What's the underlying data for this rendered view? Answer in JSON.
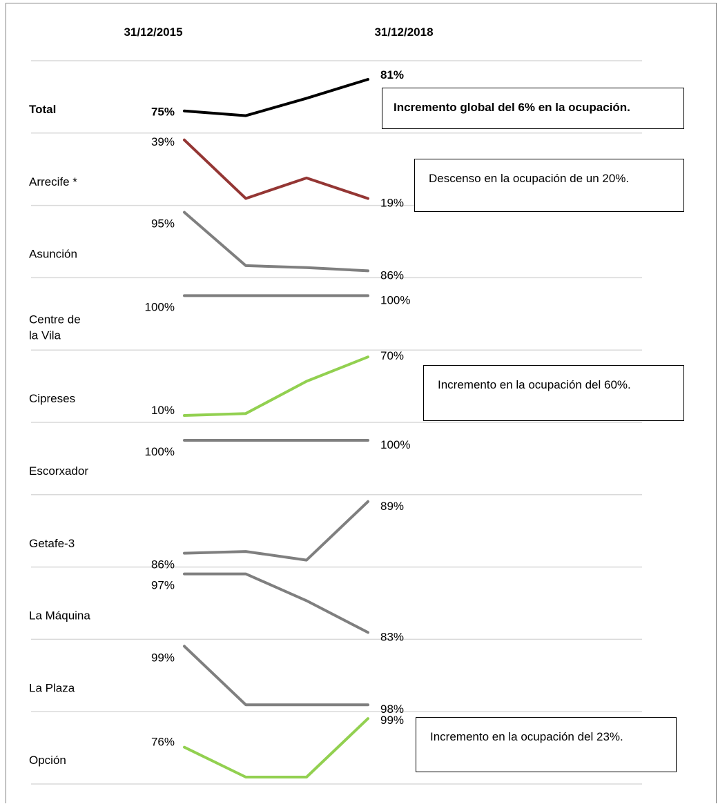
{
  "chart_data": {
    "type": "line",
    "x_start_label": "31/12/2015",
    "x_end_label": "31/12/2018",
    "y_unit": "%",
    "series": [
      {
        "name": "Total",
        "label_lines": [
          "Total"
        ],
        "values": [
          75,
          74.1,
          77.4,
          81
        ],
        "start_label": "75%",
        "end_label": "81%",
        "color": "#000000",
        "bold": true
      },
      {
        "name": "Arrecife *",
        "label_lines": [
          "Arrecife *"
        ],
        "values": [
          39,
          19,
          26,
          19
        ],
        "start_label": "39%",
        "end_label": "19%",
        "color": "#943634"
      },
      {
        "name": "Asunción",
        "label_lines": [
          "Asunción"
        ],
        "values": [
          95,
          86.8,
          86.5,
          86
        ],
        "start_label": "95%",
        "end_label": "86%",
        "color": "#7f7f7f"
      },
      {
        "name": "Centre de la Vila",
        "label_lines": [
          "Centre de",
          "la Vila"
        ],
        "values": [
          100,
          100,
          100,
          100
        ],
        "start_label": "100%",
        "end_label": "100%",
        "color": "#7f7f7f"
      },
      {
        "name": "Cipreses",
        "label_lines": [
          "Cipreses"
        ],
        "values": [
          10,
          12,
          45,
          70
        ],
        "start_label": "10%",
        "end_label": "70%",
        "color": "#92d050"
      },
      {
        "name": "Escorxador",
        "label_lines": [
          "Escorxador"
        ],
        "values": [
          100,
          100,
          100,
          100
        ],
        "start_label": "100%",
        "end_label": "100%",
        "color": "#7f7f7f"
      },
      {
        "name": "Getafe-3",
        "label_lines": [
          "Getafe-3"
        ],
        "values": [
          86,
          86.1,
          85.6,
          89
        ],
        "start_label": "86%",
        "end_label": "89%",
        "color": "#7f7f7f"
      },
      {
        "name": "La Máquina",
        "label_lines": [
          "La Máquina"
        ],
        "values": [
          97,
          97,
          90.6,
          83
        ],
        "start_label": "97%",
        "end_label": "83%",
        "color": "#7f7f7f"
      },
      {
        "name": "La Plaza",
        "label_lines": [
          "La Plaza"
        ],
        "values": [
          99,
          98,
          98,
          98
        ],
        "start_label": "99%",
        "end_label": "98%",
        "color": "#7f7f7f"
      },
      {
        "name": "Opción",
        "label_lines": [
          "Opción"
        ],
        "values": [
          76,
          52,
          52,
          99
        ],
        "start_label": "76%",
        "end_label": "99%",
        "color": "#92d050"
      }
    ],
    "annotations": [
      {
        "series": "Total",
        "text": "Incremento global del 6% en la ocupación.",
        "bold": true
      },
      {
        "series": "Arrecife *",
        "text": "Descenso en la ocupación de un 20%."
      },
      {
        "series": "Cipreses",
        "text": "Incremento en la ocupación del 60%."
      },
      {
        "series": "Opción",
        "text": "Incremento en la ocupación del 23%."
      }
    ]
  }
}
